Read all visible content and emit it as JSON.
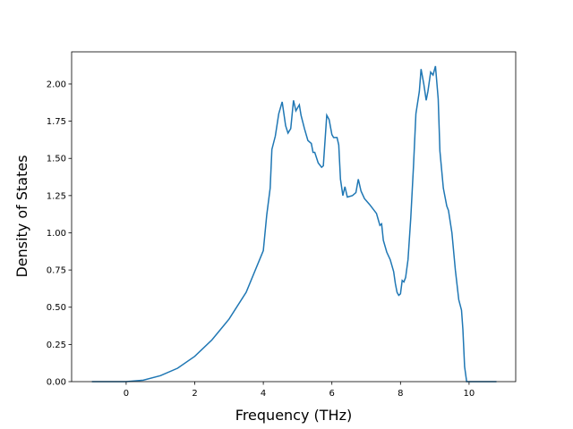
{
  "chart_data": {
    "type": "line",
    "xlabel": "Frequency (THz)",
    "ylabel": "Density of States",
    "x": [
      -1,
      0,
      0.5,
      1,
      1.5,
      2,
      2.5,
      3,
      3.5,
      4,
      4.1,
      4.2,
      4.25,
      4.35,
      4.45,
      4.55,
      4.65,
      4.72,
      4.8,
      4.88,
      4.95,
      5.05,
      5.1,
      5.2,
      5.3,
      5.4,
      5.45,
      5.5,
      5.6,
      5.7,
      5.75,
      5.85,
      5.92,
      6.0,
      6.05,
      6.15,
      6.2,
      6.25,
      6.32,
      6.38,
      6.45,
      6.6,
      6.7,
      6.77,
      6.85,
      6.95,
      7.1,
      7.3,
      7.35,
      7.4,
      7.45,
      7.5,
      7.6,
      7.7,
      7.8,
      7.85,
      7.9,
      7.95,
      8.0,
      8.05,
      8.1,
      8.15,
      8.22,
      8.3,
      8.38,
      8.45,
      8.55,
      8.6,
      8.68,
      8.75,
      8.8,
      8.88,
      8.95,
      9.02,
      9.1,
      9.15,
      9.25,
      9.35,
      9.4,
      9.5,
      9.6,
      9.7,
      9.78,
      9.82,
      9.87,
      9.93,
      10.8
    ],
    "series": [
      {
        "color": "#1f77b4",
        "values": [
          0,
          0,
          0.01,
          0.04,
          0.09,
          0.17,
          0.28,
          0.42,
          0.6,
          0.88,
          1.12,
          1.3,
          1.56,
          1.65,
          1.8,
          1.88,
          1.72,
          1.67,
          1.7,
          1.89,
          1.82,
          1.86,
          1.79,
          1.7,
          1.62,
          1.6,
          1.54,
          1.54,
          1.47,
          1.44,
          1.45,
          1.79,
          1.76,
          1.66,
          1.64,
          1.64,
          1.59,
          1.36,
          1.25,
          1.31,
          1.24,
          1.25,
          1.27,
          1.36,
          1.28,
          1.23,
          1.19,
          1.13,
          1.09,
          1.05,
          1.06,
          0.95,
          0.87,
          0.82,
          0.74,
          0.66,
          0.6,
          0.58,
          0.59,
          0.68,
          0.67,
          0.7,
          0.82,
          1.1,
          1.45,
          1.8,
          1.95,
          2.1,
          2.0,
          1.89,
          1.95,
          2.08,
          2.06,
          2.12,
          1.9,
          1.55,
          1.3,
          1.18,
          1.15,
          1.0,
          0.75,
          0.55,
          0.48,
          0.35,
          0.1,
          0,
          0
        ]
      }
    ],
    "xlim": [
      -1.59,
      11.36
    ],
    "ylim": [
      0,
      2.216
    ],
    "xticks": [
      0,
      2,
      4,
      6,
      8,
      10
    ],
    "yticks": [
      {
        "value": 0,
        "label": "0.00"
      },
      0.25,
      {
        "value": 0.5,
        "label": "0.50"
      },
      0.75,
      {
        "value": 1,
        "label": "1.00"
      },
      1.25,
      {
        "value": 1.5,
        "label": "1.50"
      },
      1.75,
      {
        "value": 2,
        "label": "2.00"
      }
    ]
  }
}
